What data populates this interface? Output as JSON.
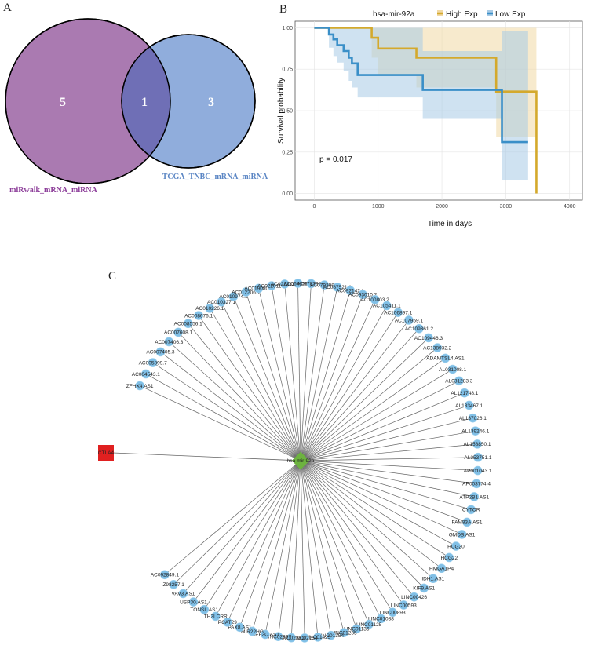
{
  "panels": {
    "A": {
      "label": "A",
      "venn": {
        "left_set": {
          "name": "miRwalk_mRNA_miRNA",
          "only_count": "5",
          "color": "#9b63a3"
        },
        "right_set": {
          "name": "TCGA_TNBC_mRNA_miRNA",
          "only_count": "3",
          "color": "#7c9fd6"
        },
        "intersection_count": "1",
        "overlap_color": "#6f6fb6"
      }
    },
    "B": {
      "label": "B"
    },
    "C": {
      "label": "C",
      "network": {
        "center": {
          "name": "hsa-mir-92a",
          "color": "#6db33f"
        },
        "hub": {
          "name": "CTLA4",
          "color": "#e02020"
        },
        "node_color": "#80bfe6",
        "nodes": [
          "ZFHX4.AS1",
          "AC004543.1",
          "AC005899.7",
          "AC007405.3",
          "AC007406.3",
          "AC007608.1",
          "AC008556.1",
          "AC008676.1",
          "AC010226.1",
          "AC010327.1",
          "AC010974.1",
          "AC012206.1",
          "AC019080.1",
          "AC022011.1",
          "AC022211.1",
          "AC064836.3",
          "AC078798.1",
          "AC079298.3",
          "AC087521.1",
          "AC092142.1",
          "AC093010.2",
          "AC100803.2",
          "AC105411.1",
          "AC106897.1",
          "AC107959.1",
          "AC109361.2",
          "AC109446.3",
          "AC138932.2",
          "ADAMTSL4.AS1",
          "AL031008.1",
          "AL031283.3",
          "AL121748.1",
          "AL133467.1",
          "AL137026.1",
          "AL139246.1",
          "AL158850.1",
          "AL353751.1",
          "AP001043.1",
          "AP003774.4",
          "ATP2B1.AS1",
          "CYTOR",
          "FAM83A.AS1",
          "GMDS.AS1",
          "HCG20",
          "HCG22",
          "HMGA1P4",
          "IDH1.AS1",
          "KIF9.AS1",
          "LINC00426",
          "LINC00593",
          "LINC00893",
          "LINC01088",
          "LINC01125",
          "LINC01136",
          "LINC01235",
          "LINC01354",
          "LINC01425",
          "LINC02154",
          "LINC02381",
          "LINC02397",
          "MEF2C.AS1",
          "MIR22HG",
          "PAX8.AS1",
          "PCAT29",
          "TH2LCRR",
          "TONSL.AS1",
          "USP30.AS1",
          "VAV3.AS1",
          "Z98257.1",
          "AC092849.1"
        ]
      }
    }
  },
  "chart_data": {
    "type": "line",
    "subtype": "kaplan-meier",
    "title": "",
    "legend_title": "hsa-mir-92a",
    "legend_position": "top",
    "xlabel": "Time in days",
    "ylabel": "Survival probability",
    "xlim": [
      -300,
      4200
    ],
    "ylim": [
      -0.04,
      1.04
    ],
    "x_ticks": [
      0,
      1000,
      2000,
      3000,
      4000
    ],
    "y_ticks": [
      0.0,
      0.25,
      0.5,
      0.75,
      1.0
    ],
    "x_tick_labels": [
      "0",
      "1000",
      "2000",
      "3000",
      "4000"
    ],
    "y_tick_labels": [
      "0.00",
      "0.25",
      "0.50",
      "0.75",
      "1.00"
    ],
    "annotation": "p = 0.017",
    "series": [
      {
        "name": "High Exp",
        "color": "#d4a92c",
        "band_color": "#f1d9a4",
        "steps": [
          [
            0,
            1.0
          ],
          [
            900,
            1.0
          ],
          [
            900,
            0.94
          ],
          [
            1000,
            0.94
          ],
          [
            1000,
            0.875
          ],
          [
            1600,
            0.875
          ],
          [
            1600,
            0.82
          ],
          [
            2850,
            0.82
          ],
          [
            2850,
            0.615
          ],
          [
            3480,
            0.615
          ],
          [
            3480,
            0.0
          ]
        ],
        "lower": [
          [
            0,
            1.0
          ],
          [
            900,
            1.0
          ],
          [
            900,
            0.82
          ],
          [
            1000,
            0.82
          ],
          [
            1000,
            0.72
          ],
          [
            1600,
            0.72
          ],
          [
            1600,
            0.64
          ],
          [
            2850,
            0.64
          ],
          [
            2850,
            0.34
          ],
          [
            3480,
            0.34
          ],
          [
            3480,
            0.0
          ]
        ],
        "upper": [
          [
            0,
            1.0
          ],
          [
            3480,
            1.0
          ]
        ]
      },
      {
        "name": "Low Exp",
        "color": "#3a8fc8",
        "band_color": "#a8cbe6",
        "steps": [
          [
            0,
            1.0
          ],
          [
            230,
            1.0
          ],
          [
            230,
            0.96
          ],
          [
            300,
            0.96
          ],
          [
            300,
            0.93
          ],
          [
            360,
            0.93
          ],
          [
            360,
            0.895
          ],
          [
            460,
            0.895
          ],
          [
            460,
            0.86
          ],
          [
            540,
            0.86
          ],
          [
            540,
            0.82
          ],
          [
            590,
            0.82
          ],
          [
            590,
            0.785
          ],
          [
            680,
            0.785
          ],
          [
            680,
            0.715
          ],
          [
            1700,
            0.715
          ],
          [
            1700,
            0.625
          ],
          [
            2940,
            0.625
          ],
          [
            2940,
            0.31
          ],
          [
            3350,
            0.31
          ]
        ],
        "lower": [
          [
            0,
            1.0
          ],
          [
            230,
            0.88
          ],
          [
            300,
            0.83
          ],
          [
            360,
            0.79
          ],
          [
            460,
            0.74
          ],
          [
            540,
            0.68
          ],
          [
            590,
            0.64
          ],
          [
            680,
            0.58
          ],
          [
            1700,
            0.58
          ],
          [
            1700,
            0.45
          ],
          [
            2940,
            0.45
          ],
          [
            2940,
            0.08
          ],
          [
            3350,
            0.08
          ]
        ],
        "upper": [
          [
            0,
            1.0
          ],
          [
            460,
            1.0
          ],
          [
            680,
            1.0
          ],
          [
            1700,
            1.0
          ],
          [
            1700,
            0.86
          ],
          [
            2940,
            0.86
          ],
          [
            2940,
            0.98
          ],
          [
            3350,
            0.98
          ]
        ]
      }
    ]
  }
}
